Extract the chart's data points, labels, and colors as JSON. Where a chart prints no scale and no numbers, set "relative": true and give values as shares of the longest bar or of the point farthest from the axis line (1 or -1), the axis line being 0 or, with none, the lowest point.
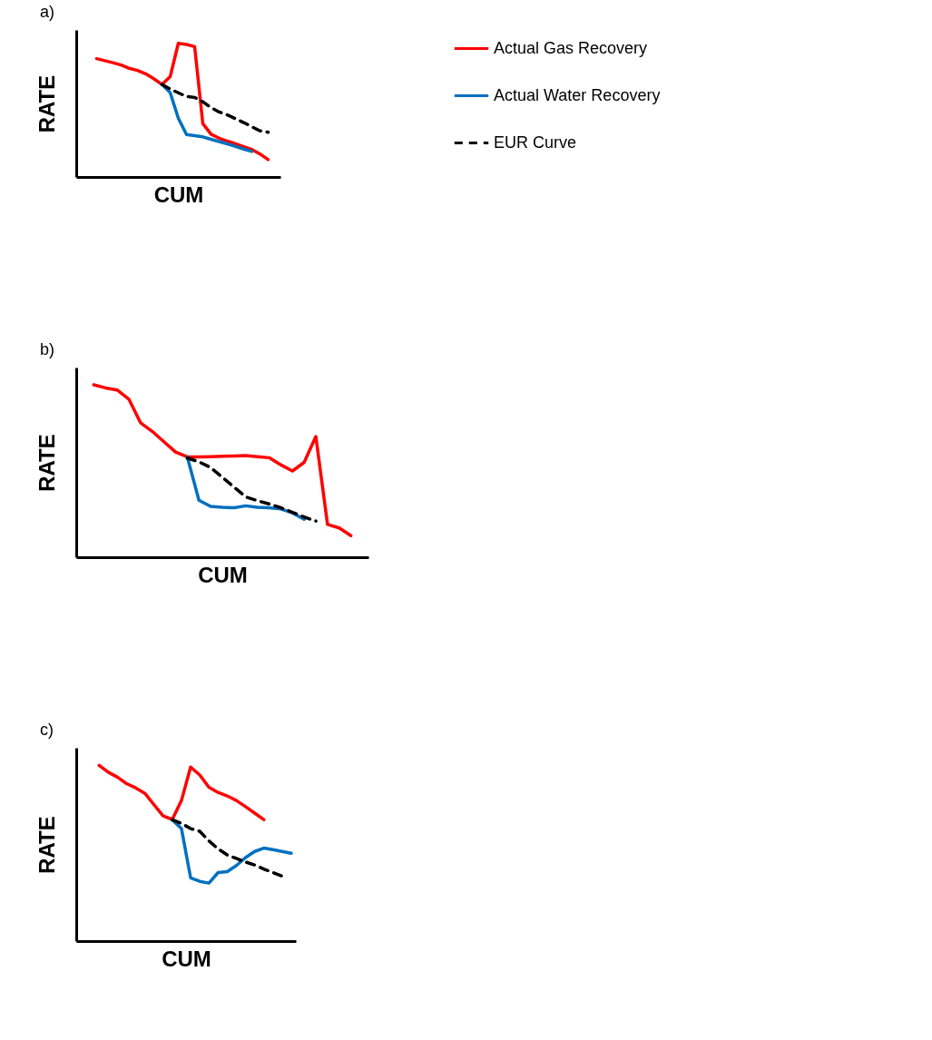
{
  "chart_data": [
    {
      "type": "line",
      "title": "a)",
      "xlabel": "CUM",
      "ylabel": "RATE",
      "relative": true,
      "legend": "right",
      "categories": [
        null,
        null,
        null,
        null,
        null,
        null,
        null,
        null,
        null,
        null,
        null,
        null,
        null,
        null,
        null,
        null,
        null,
        null,
        null,
        null,
        null,
        null
      ],
      "series": [
        {
          "name": "Actual Gas Recovery",
          "color": "#ff0000",
          "line_style": "solid",
          "values": [
            0.885,
            0.87,
            0.855,
            0.838,
            0.813,
            0.797,
            0.772,
            0.735,
            0.692,
            0.75,
            1.0,
            0.991,
            0.975,
            0.4,
            0.32,
            0.29,
            0.268,
            0.248,
            0.227,
            0.206,
            0.172,
            0.13
          ]
        },
        {
          "name": "Actual Water Recovery",
          "color": "#0070c0",
          "line_style": "solid",
          "values": [
            null,
            null,
            null,
            null,
            null,
            null,
            null,
            null,
            0.692,
            0.631,
            0.44,
            0.318,
            0.309,
            0.3,
            0.282,
            0.265,
            0.248,
            0.228,
            0.209,
            0.191,
            null,
            null
          ]
        },
        {
          "name": "EUR Curve",
          "color": "#000000",
          "line_style": "dashed",
          "values": [
            null,
            null,
            null,
            null,
            null,
            null,
            null,
            null,
            0.692,
            0.658,
            0.63,
            0.602,
            0.595,
            0.563,
            0.519,
            0.486,
            0.464,
            0.436,
            0.407,
            0.376,
            0.345,
            0.335
          ]
        }
      ]
    },
    {
      "type": "line",
      "title": "b)",
      "xlabel": "CUM",
      "ylabel": "RATE",
      "relative": true,
      "categories": [
        null,
        null,
        null,
        null,
        null,
        null,
        null,
        null,
        null,
        null,
        null,
        null,
        null,
        null,
        null,
        null,
        null,
        null,
        null,
        null,
        null,
        null,
        null
      ],
      "series": [
        {
          "color": "#ff0000",
          "line_style": "solid",
          "values": [
            1.0,
            0.982,
            0.97,
            0.917,
            0.78,
            0.73,
            0.67,
            0.61,
            0.582,
            0.582,
            0.583,
            0.585,
            0.587,
            0.589,
            0.583,
            0.577,
            0.536,
            0.5,
            0.55,
            0.7,
            0.19,
            0.17,
            0.125
          ]
        },
        {
          "color": "#0070c0",
          "line_style": "solid",
          "values": [
            null,
            null,
            null,
            null,
            null,
            null,
            null,
            null,
            0.582,
            0.33,
            0.295,
            0.289,
            0.287,
            0.298,
            0.29,
            0.287,
            0.28,
            0.257,
            0.22,
            null,
            null,
            null,
            null
          ]
        },
        {
          "color": "#000000",
          "line_style": "dashed",
          "values": [
            null,
            null,
            null,
            null,
            null,
            null,
            null,
            null,
            0.575,
            0.553,
            0.52,
            0.464,
            0.407,
            0.35,
            0.328,
            0.309,
            0.287,
            0.26,
            0.233,
            0.21,
            null,
            null,
            null
          ]
        }
      ]
    },
    {
      "type": "line",
      "title": "c)",
      "xlabel": "CUM",
      "ylabel": "RATE",
      "relative": true,
      "categories": [
        null,
        null,
        null,
        null,
        null,
        null,
        null,
        null,
        null,
        null,
        null,
        null,
        null,
        null,
        null,
        null,
        null,
        null,
        null,
        null,
        null,
        null
      ],
      "series": [
        {
          "color": "#ff0000",
          "line_style": "solid",
          "values": [
            1.0,
            0.961,
            0.933,
            0.896,
            0.872,
            0.841,
            0.776,
            0.712,
            0.692,
            0.8,
            0.99,
            0.945,
            0.875,
            0.846,
            0.826,
            0.8,
            0.765,
            0.728,
            0.691,
            null,
            null,
            null
          ]
        },
        {
          "color": "#0070c0",
          "line_style": "solid",
          "values": [
            null,
            null,
            null,
            null,
            null,
            null,
            null,
            null,
            0.69,
            0.64,
            0.36,
            0.34,
            0.33,
            0.39,
            0.395,
            0.43,
            0.475,
            0.51,
            0.529,
            0.52,
            0.51,
            0.5
          ]
        },
        {
          "color": "#000000",
          "line_style": "dashed",
          "values": [
            null,
            null,
            null,
            null,
            null,
            null,
            null,
            null,
            0.69,
            0.67,
            0.64,
            0.625,
            0.57,
            0.525,
            0.49,
            0.47,
            0.45,
            0.433,
            0.41,
            0.39,
            0.37,
            null
          ]
        }
      ]
    }
  ]
}
